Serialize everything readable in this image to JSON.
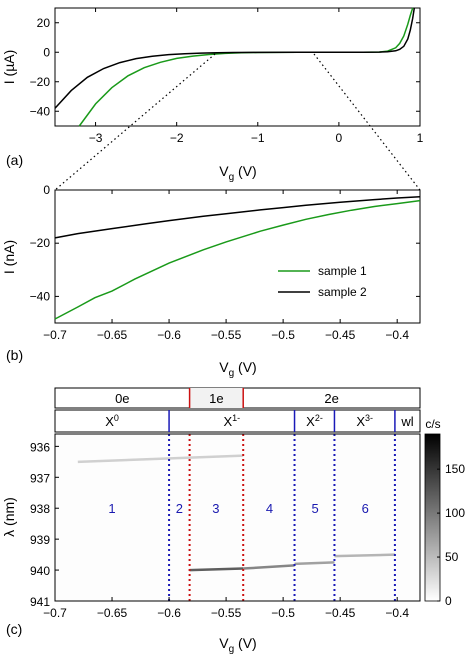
{
  "chart_data": [
    {
      "panel": "(a)",
      "type": "line",
      "xlabel_main": "V",
      "xlabel_sub": "g",
      "xlabel_unit": " (V)",
      "ylabel": "I (µA)",
      "xlim": [
        -3.5,
        1.0
      ],
      "ylim": [
        -50,
        30
      ],
      "xticks": [
        -3,
        -2,
        -1,
        0,
        1
      ],
      "yticks": [
        20,
        0,
        -20,
        -40
      ],
      "series": [
        {
          "color": "#1a9a1a",
          "x": [
            -3.2,
            -3.0,
            -2.8,
            -2.6,
            -2.4,
            -2.2,
            -2.0,
            -1.8,
            -1.6,
            -1.4,
            -1.2,
            -1.0,
            -0.5,
            0.0,
            0.3,
            0.5,
            0.6,
            0.7,
            0.75,
            0.8,
            0.85,
            0.88,
            0.91
          ],
          "y": [
            -50,
            -35,
            -24,
            -16,
            -10.5,
            -6.8,
            -4.2,
            -2.6,
            -1.5,
            -0.8,
            -0.4,
            -0.2,
            -0.05,
            0,
            0.05,
            0.2,
            0.8,
            3,
            6,
            11,
            19,
            25,
            30
          ]
        },
        {
          "color": "#000000",
          "x": [
            -3.5,
            -3.3,
            -3.1,
            -2.9,
            -2.7,
            -2.5,
            -2.3,
            -2.1,
            -1.9,
            -1.7,
            -1.5,
            -1.3,
            -1.0,
            -0.5,
            0.0,
            0.3,
            0.5,
            0.6,
            0.7,
            0.75,
            0.8,
            0.85,
            0.88,
            0.91,
            0.93
          ],
          "y": [
            -38,
            -26,
            -17,
            -11,
            -7,
            -4.3,
            -2.7,
            -1.6,
            -1.0,
            -0.6,
            -0.35,
            -0.2,
            -0.1,
            -0.02,
            0,
            0.02,
            0.1,
            0.3,
            1,
            2,
            4,
            9,
            15,
            23,
            30
          ]
        }
      ],
      "zoom_range_x": [
        -0.7,
        -0.38
      ]
    },
    {
      "panel": "(b)",
      "type": "line",
      "xlabel_main": "V",
      "xlabel_sub": "g",
      "xlabel_unit": " (V)",
      "ylabel": "I (nA)",
      "xlim": [
        -0.7,
        -0.38
      ],
      "ylim": [
        -50,
        0
      ],
      "xticks": [
        -0.7,
        -0.65,
        -0.6,
        -0.55,
        -0.5,
        -0.45,
        -0.4
      ],
      "yticks": [
        0,
        -20,
        -40
      ],
      "series": [
        {
          "name": "sample 1",
          "color": "#1a9a1a",
          "x": [
            -0.7,
            -0.68,
            -0.665,
            -0.65,
            -0.63,
            -0.6,
            -0.57,
            -0.55,
            -0.52,
            -0.5,
            -0.48,
            -0.46,
            -0.44,
            -0.42,
            -0.4,
            -0.38
          ],
          "y": [
            -48.5,
            -44,
            -40.5,
            -38,
            -33.5,
            -27.5,
            -22.5,
            -19.5,
            -15.5,
            -13.2,
            -11,
            -9.2,
            -7.6,
            -6.2,
            -5.1,
            -4.0
          ]
        },
        {
          "name": "sample 2",
          "color": "#000000",
          "x": [
            -0.7,
            -0.68,
            -0.65,
            -0.62,
            -0.6,
            -0.57,
            -0.55,
            -0.52,
            -0.5,
            -0.48,
            -0.45,
            -0.42,
            -0.4,
            -0.38
          ],
          "y": [
            -18.0,
            -16.4,
            -14.5,
            -12.7,
            -11.5,
            -9.9,
            -8.9,
            -7.5,
            -6.6,
            -5.7,
            -4.6,
            -3.6,
            -3.0,
            -2.5
          ]
        }
      ]
    },
    {
      "panel": "(c)",
      "type": "heatmap",
      "xlabel_main": "V",
      "xlabel_sub": "g",
      "xlabel_unit": " (V)",
      "ylabel": "λ (nm)",
      "xlim": [
        -0.7,
        -0.38
      ],
      "ylim": [
        941,
        935.6
      ],
      "xticks": [
        -0.7,
        -0.65,
        -0.6,
        -0.55,
        -0.5,
        -0.45,
        -0.4
      ],
      "yticks": [
        936,
        937,
        938,
        939,
        940,
        941
      ],
      "colorbar": {
        "label": "c/s",
        "ticks": [
          0,
          50,
          100,
          150
        ],
        "range": [
          0,
          190
        ]
      },
      "charge_states": [
        {
          "label": "0e",
          "from": -0.7,
          "to": -0.582
        },
        {
          "label": "1e",
          "from": -0.582,
          "to": -0.535
        },
        {
          "label": "2e",
          "from": -0.535,
          "to": -0.38
        }
      ],
      "excitons": [
        {
          "label": "X",
          "sup": "0",
          "from": -0.7,
          "to": -0.6
        },
        {
          "label": "X",
          "sup": "1-",
          "from": -0.6,
          "to": -0.49
        },
        {
          "label": "X",
          "sup": "2-",
          "from": -0.49,
          "to": -0.455
        },
        {
          "label": "X",
          "sup": "3-",
          "from": -0.455,
          "to": -0.402
        },
        {
          "label": "wl",
          "sup": "",
          "from": -0.402,
          "to": -0.38
        }
      ],
      "blue_lines": [
        -0.6,
        -0.49,
        -0.455,
        -0.402
      ],
      "red_lines": [
        -0.582,
        -0.535
      ],
      "regions": [
        {
          "label": "1",
          "x": -0.65
        },
        {
          "label": "2",
          "x": -0.591
        },
        {
          "label": "3",
          "x": -0.559
        },
        {
          "label": "4",
          "x": -0.512
        },
        {
          "label": "5",
          "x": -0.472
        },
        {
          "label": "6",
          "x": -0.428
        }
      ],
      "region_label_y": 938.0,
      "lines": [
        {
          "x": [
            -0.68,
            -0.535
          ],
          "y": [
            936.5,
            936.3
          ],
          "intensity": 35
        },
        {
          "x": [
            -0.582,
            -0.535
          ],
          "y": [
            940.0,
            939.95
          ],
          "intensity": 120
        },
        {
          "x": [
            -0.535,
            -0.49
          ],
          "y": [
            939.95,
            939.85
          ],
          "intensity": 90
        },
        {
          "x": [
            -0.49,
            -0.455
          ],
          "y": [
            939.8,
            939.75
          ],
          "intensity": 70
        },
        {
          "x": [
            -0.455,
            -0.402
          ],
          "y": [
            939.55,
            939.5
          ],
          "intensity": 55
        }
      ]
    }
  ]
}
